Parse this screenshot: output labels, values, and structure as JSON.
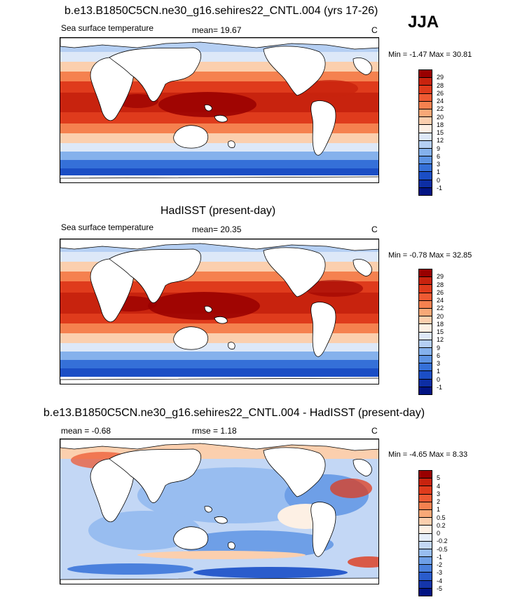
{
  "season": "JJA",
  "panels": [
    {
      "title": "b.e13.B1850C5CN.ne30_g16.sehires22_CNTL.004 (yrs 17-26)",
      "left_label": "Sea surface temperature",
      "center_label": "mean=  19.67",
      "units": "C",
      "minmax": "Min =  -1.47 Max =  30.81",
      "levels": [
        "29",
        "28",
        "26",
        "24",
        "22",
        "20",
        "18",
        "15",
        "12",
        "9",
        "6",
        "3",
        "1",
        "0",
        "-1"
      ],
      "colors": [
        "#990000",
        "#c8230e",
        "#df3b1c",
        "#ee5a33",
        "#f5814f",
        "#f8a877",
        "#fbcfae",
        "#fdf0e4",
        "#dde8f8",
        "#b5cff3",
        "#85b1ec",
        "#5d93e3",
        "#3570d8",
        "#1b4ec5",
        "#0d2ea4",
        "#021483"
      ]
    },
    {
      "title": "HadISST (present-day)",
      "left_label": "Sea surface temperature",
      "center_label": "mean=  20.35",
      "units": "C",
      "minmax": "Min =  -0.78 Max =  32.85",
      "levels": [
        "29",
        "28",
        "26",
        "24",
        "22",
        "20",
        "18",
        "15",
        "12",
        "9",
        "6",
        "3",
        "1",
        "0",
        "-1"
      ],
      "colors": [
        "#990000",
        "#c8230e",
        "#df3b1c",
        "#ee5a33",
        "#f5814f",
        "#f8a877",
        "#fbcfae",
        "#fdf0e4",
        "#dde8f8",
        "#b5cff3",
        "#85b1ec",
        "#5d93e3",
        "#3570d8",
        "#1b4ec5",
        "#0d2ea4",
        "#021483"
      ]
    },
    {
      "title": "b.e13.B1850C5CN.ne30_g16.sehires22_CNTL.004 - HadISST (present-day)",
      "left_label": "mean =  -0.68",
      "center_label": "rmse =   1.18",
      "units": "C",
      "minmax": "Min =  -4.65 Max =   8.33",
      "levels": [
        "5",
        "4",
        "3",
        "2",
        "1",
        "0.5",
        "0.2",
        "0",
        "-0.2",
        "-0.5",
        "-1",
        "-2",
        "-3",
        "-4",
        "-5"
      ],
      "colors": [
        "#990000",
        "#c8230e",
        "#df3b1c",
        "#ee5a33",
        "#f5814f",
        "#f8a877",
        "#fbcfae",
        "#fdf0e4",
        "#e6eef9",
        "#c3d7f5",
        "#98bdf0",
        "#6e9fe7",
        "#4a80dd",
        "#2a5ccc",
        "#1435aa",
        "#021483"
      ]
    }
  ]
}
